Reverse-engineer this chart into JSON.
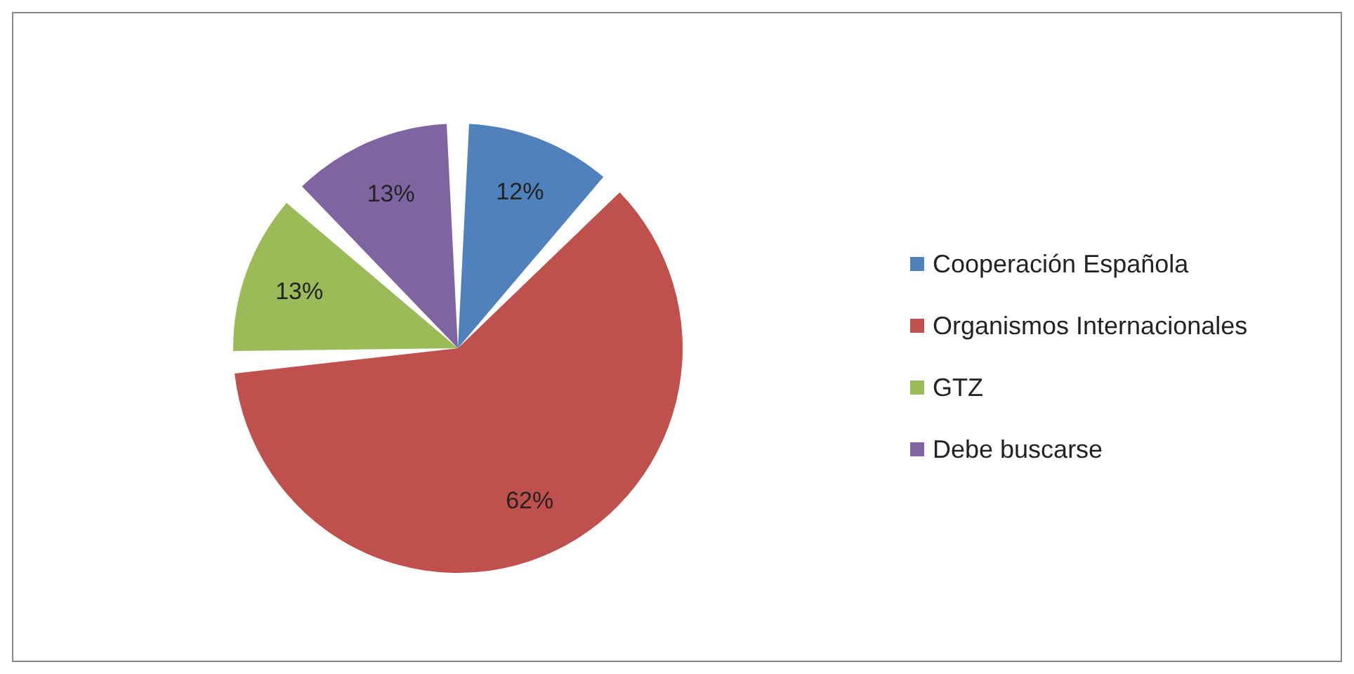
{
  "chart_data": {
    "type": "pie",
    "categories": [
      "Cooperación Española",
      "Organismos Internacionales",
      "GTZ",
      "Debe buscarse"
    ],
    "values": [
      12,
      62,
      13,
      13
    ],
    "colors": [
      "#4f81bd",
      "#c0504d",
      "#9bbb59",
      "#8064a2"
    ],
    "value_labels": [
      "12%",
      "62%",
      "13%",
      "13%"
    ],
    "legend": "right"
  }
}
